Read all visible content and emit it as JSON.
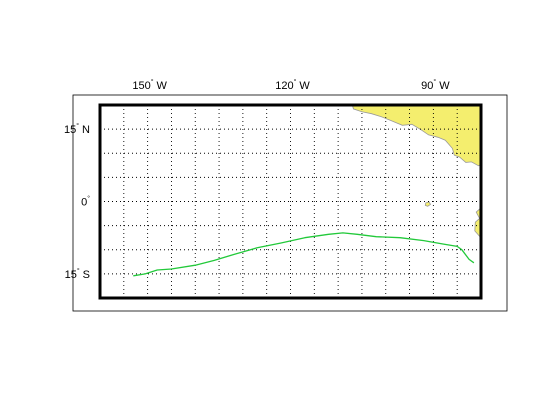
{
  "map": {
    "lon_labels": [
      {
        "value": -150,
        "deg": "150",
        "hemi": "W"
      },
      {
        "value": -120,
        "deg": "120",
        "hemi": "W"
      },
      {
        "value": -90,
        "deg": "90",
        "hemi": "W"
      }
    ],
    "lat_labels": [
      {
        "value": 15,
        "deg": "15",
        "hemi": "N"
      },
      {
        "value": 0,
        "deg": "0",
        "hemi": ""
      },
      {
        "value": -15,
        "deg": "15",
        "hemi": "S"
      }
    ],
    "lon_range": [
      -160,
      -80
    ],
    "lat_range": [
      -20,
      20
    ],
    "grid_spacing_deg": 5,
    "grid": true,
    "colors": {
      "land": "#f4ee6e",
      "coast": "#9a9a9a",
      "track": "#22c93a",
      "grid": "#000000",
      "frame": "#000000"
    },
    "track": [
      [
        -153.0,
        -15.4
      ],
      [
        -150.5,
        -15.0
      ],
      [
        -148.0,
        -14.2
      ],
      [
        -145.0,
        -14.0
      ],
      [
        -140.0,
        -13.2
      ],
      [
        -136.0,
        -12.2
      ],
      [
        -132.0,
        -11.0
      ],
      [
        -127.0,
        -9.6
      ],
      [
        -122.0,
        -8.6
      ],
      [
        -117.0,
        -7.5
      ],
      [
        -112.0,
        -6.8
      ],
      [
        -109.0,
        -6.5
      ],
      [
        -106.0,
        -6.8
      ],
      [
        -102.0,
        -7.3
      ],
      [
        -97.0,
        -7.5
      ],
      [
        -92.0,
        -8.1
      ],
      [
        -88.0,
        -8.8
      ],
      [
        -85.0,
        -9.3
      ],
      [
        -84.0,
        -10.0
      ],
      [
        -82.5,
        -12.0
      ],
      [
        -81.5,
        -12.7
      ]
    ],
    "land": [
      [
        [
          -107,
          20
        ],
        [
          -106.8,
          19.2
        ],
        [
          -105,
          18.6
        ],
        [
          -103,
          18.2
        ],
        [
          -101,
          17.6
        ],
        [
          -99,
          16.8
        ],
        [
          -96.5,
          15.8
        ],
        [
          -94.5,
          16.0
        ],
        [
          -92.8,
          15.0
        ],
        [
          -91,
          13.8
        ],
        [
          -89,
          13.3
        ],
        [
          -87.5,
          12.7
        ],
        [
          -86,
          11.0
        ],
        [
          -85.6,
          9.6
        ],
        [
          -84.5,
          9.2
        ],
        [
          -83.2,
          8.1
        ],
        [
          -82,
          8.2
        ],
        [
          -80.5,
          7.4
        ],
        [
          -79.5,
          8.0
        ],
        [
          -77.7,
          7.4
        ],
        [
          -77.3,
          5.5
        ],
        [
          -77.6,
          3.8
        ],
        [
          -78.8,
          1.7
        ],
        [
          -80.1,
          0.2
        ],
        [
          -80.2,
          -1.5
        ],
        [
          -81.0,
          -2.2
        ],
        [
          -80.3,
          -3.5
        ],
        [
          -81.2,
          -4.3
        ],
        [
          -81.3,
          -6.1
        ],
        [
          -79.6,
          -8.0
        ],
        [
          -78.4,
          -10.1
        ],
        [
          -77.1,
          -12.1
        ],
        [
          -76.2,
          -13.8
        ],
        [
          -75.8,
          -15.5
        ],
        [
          -75,
          -16.5
        ],
        [
          -74.5,
          -18.0
        ],
        [
          -74.5,
          -20
        ],
        [
          -80,
          -20
        ],
        [
          -80,
          20
        ]
      ],
      [
        [
          -91.6,
          -0.3
        ],
        [
          -90.9,
          -0.1
        ],
        [
          -90.6,
          -0.6
        ],
        [
          -91.2,
          -1.0
        ],
        [
          -91.7,
          -0.8
        ]
      ]
    ]
  }
}
